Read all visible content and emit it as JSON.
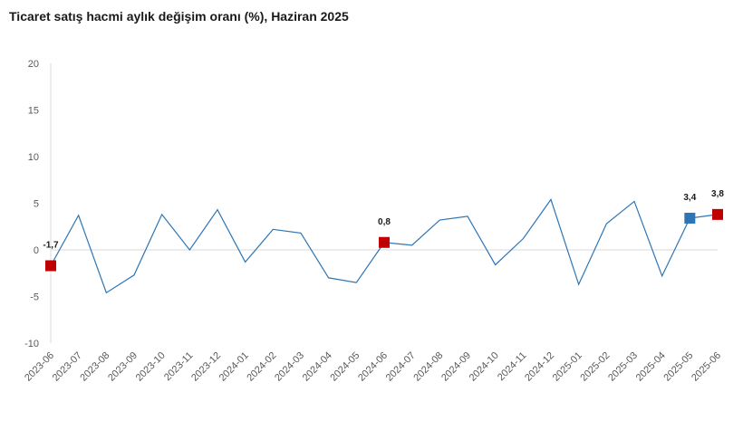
{
  "chart_data": {
    "type": "line",
    "title": "Ticaret satış hacmi aylık değişim oranı (%), Haziran 2025",
    "xlabel": "",
    "ylabel": "",
    "ylim": [
      -10,
      20
    ],
    "yticks": [
      "-10",
      "-5",
      "0",
      "5",
      "10",
      "15",
      "20"
    ],
    "yticks_values": [
      -10,
      -5,
      0,
      5,
      10,
      15,
      20
    ],
    "grid": false,
    "categories": [
      "2023-06",
      "2023-07",
      "2023-08",
      "2023-09",
      "2023-10",
      "2023-11",
      "2023-12",
      "2024-01",
      "2024-02",
      "2024-03",
      "2024-04",
      "2024-05",
      "2024-06",
      "2024-07",
      "2024-08",
      "2024-09",
      "2024-10",
      "2024-11",
      "2024-12",
      "2025-01",
      "2025-02",
      "2025-03",
      "2025-04",
      "2025-05",
      "2025-06"
    ],
    "series": [
      {
        "values": [
          -1.7,
          3.7,
          -4.6,
          -2.7,
          3.8,
          0.0,
          4.3,
          -1.3,
          2.2,
          1.8,
          -3.0,
          -3.5,
          0.8,
          0.5,
          3.2,
          3.6,
          -1.6,
          1.2,
          5.4,
          -3.7,
          2.8,
          5.2,
          -2.8,
          3.4,
          3.8
        ],
        "color": "#2e75b6"
      }
    ],
    "highlights": [
      {
        "index": 0,
        "label": "-1,7",
        "color": "#c00000"
      },
      {
        "index": 12,
        "label": "0,8",
        "color": "#c00000"
      },
      {
        "index": 23,
        "label": "3,4",
        "color": "#2e75b6"
      },
      {
        "index": 24,
        "label": "3,8",
        "color": "#c00000"
      }
    ]
  }
}
